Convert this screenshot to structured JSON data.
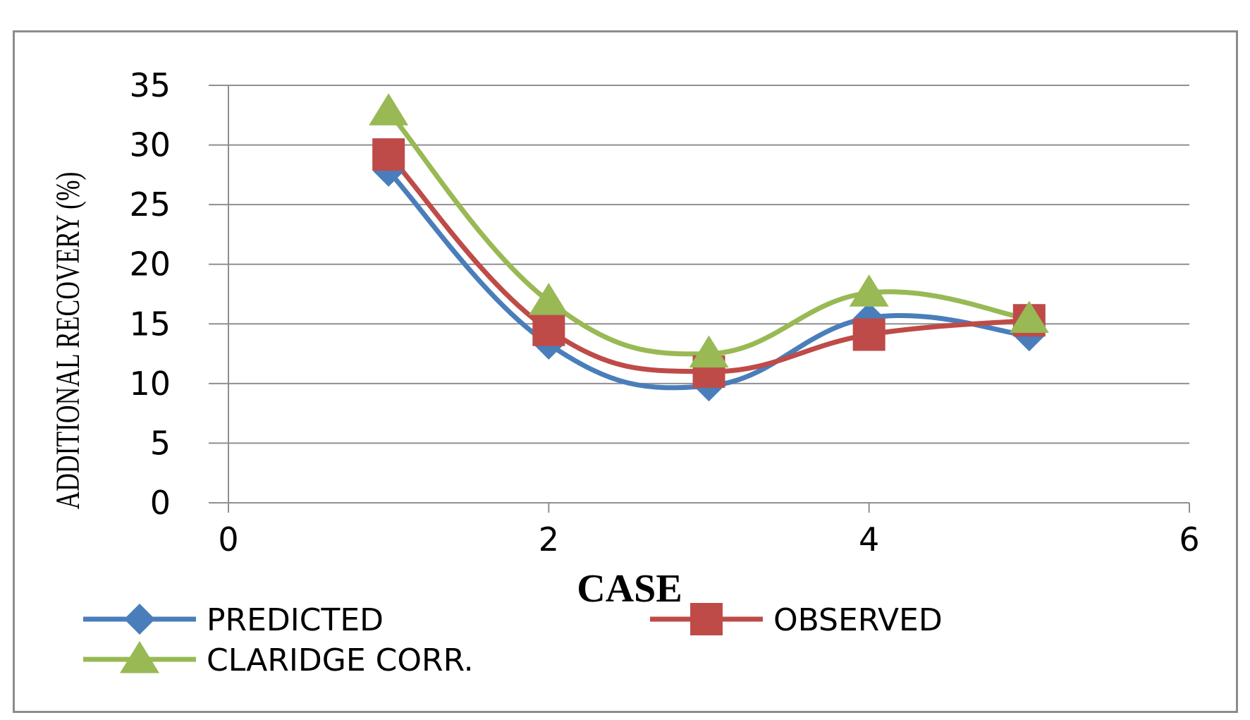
{
  "chart_data": {
    "type": "line",
    "title": "",
    "xlabel": "CASE",
    "ylabel": "ADDITIONAL RECOVERY (%)",
    "xlim": [
      0,
      6
    ],
    "ylim": [
      0,
      35
    ],
    "xticks": [
      0,
      2,
      4,
      6
    ],
    "yticks": [
      0,
      5,
      10,
      15,
      20,
      25,
      30,
      35
    ],
    "grid": "horizontal",
    "smooth": true,
    "legend_position": "bottom",
    "series": [
      {
        "name": "PREDICTED",
        "color": "#4a7ebb",
        "marker": "diamond",
        "x": [
          1,
          2,
          3,
          4,
          5
        ],
        "y": [
          27.8,
          13.3,
          9.8,
          15.5,
          14.0
        ]
      },
      {
        "name": "OBSERVED",
        "color": "#be4b48",
        "marker": "square",
        "x": [
          1,
          2,
          3,
          4,
          5
        ],
        "y": [
          29.2,
          14.5,
          11.0,
          14.1,
          15.3
        ]
      },
      {
        "name": "CLARIDGE CORR.",
        "color": "#98b954",
        "marker": "triangle",
        "x": [
          1,
          2,
          3,
          4,
          5
        ],
        "y": [
          32.8,
          16.9,
          12.5,
          17.6,
          15.4
        ]
      }
    ]
  }
}
